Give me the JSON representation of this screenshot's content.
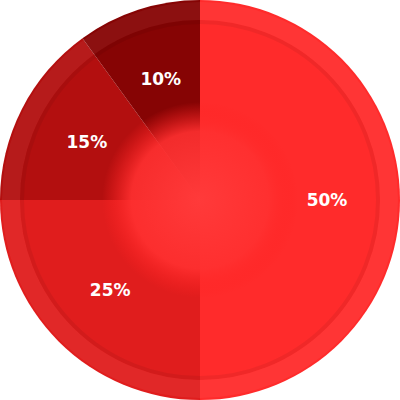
{
  "chart_data": {
    "type": "pie",
    "values": [
      50,
      25,
      15,
      10
    ],
    "value_labels": [
      "50%",
      "25%",
      "15%",
      "10%"
    ],
    "colors": [
      "#ff2b2b",
      "#e01d1d",
      "#b30f0f",
      "#860404"
    ],
    "data_labels": true
  }
}
